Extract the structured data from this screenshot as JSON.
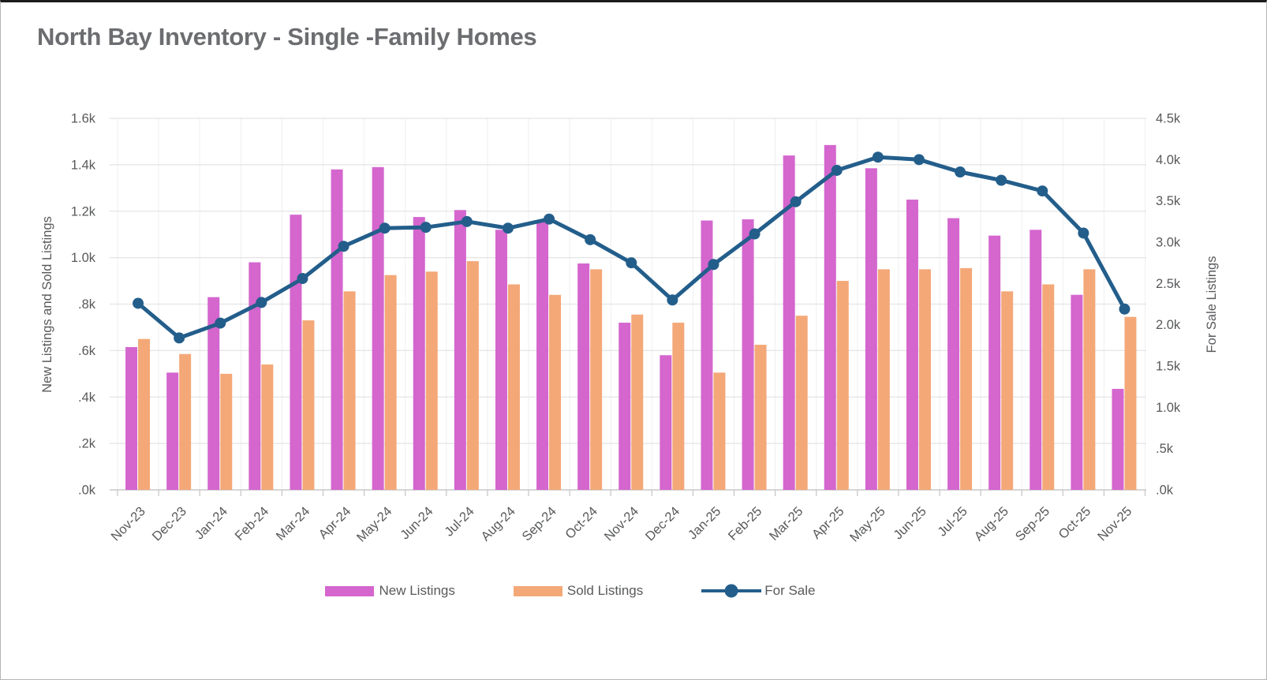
{
  "page": {
    "title": "North Bay Inventory  - Single -Family Homes"
  },
  "legend": {
    "new_listings": "New Listings",
    "sold_listings": "Sold Listings",
    "for_sale": "For Sale"
  },
  "colors": {
    "title_text": "#6c6d70",
    "axis_text": "#58595b",
    "gridline": "#e4e4e4",
    "vertical_gridline": "#efefef",
    "axis_line": "#c9c9c9",
    "background": "#ffffff",
    "new_listings": "#d466ce",
    "sold_listings": "#f4a878",
    "for_sale": "#235e8b"
  },
  "chart_data": {
    "type": "bar",
    "subtype": "grouped bars with overlay line, dual y-axes",
    "title": "North Bay Inventory  - Single -Family Homes",
    "grid": true,
    "legend_position": "bottom",
    "categories": [
      "Nov-23",
      "Dec-23",
      "Jan-24",
      "Feb-24",
      "Mar-24",
      "Apr-24",
      "May-24",
      "Jun-24",
      "Jul-24",
      "Aug-24",
      "Sep-24",
      "Oct-24",
      "Nov-24",
      "Dec-24",
      "Jan-25",
      "Feb-25",
      "Mar-25",
      "Apr-25",
      "May-25",
      "Jun-25",
      "Jul-25",
      "Aug-25",
      "Sep-25",
      "Oct-25",
      "Nov-25"
    ],
    "series": [
      {
        "name": "New Listings",
        "type": "bar",
        "axis": "left",
        "color": "#d466ce",
        "values": [
          615,
          505,
          830,
          980,
          1185,
          1380,
          1390,
          1175,
          1205,
          1120,
          1160,
          975,
          720,
          580,
          1160,
          1165,
          1440,
          1485,
          1385,
          1250,
          1170,
          1095,
          1120,
          840,
          435
        ]
      },
      {
        "name": "Sold Listings",
        "type": "bar",
        "axis": "left",
        "color": "#f4a878",
        "values": [
          650,
          585,
          500,
          540,
          730,
          855,
          925,
          940,
          985,
          885,
          840,
          950,
          755,
          720,
          505,
          625,
          750,
          900,
          950,
          950,
          955,
          855,
          885,
          950,
          745
        ]
      },
      {
        "name": "For Sale",
        "type": "line",
        "axis": "right",
        "color": "#235e8b",
        "values": [
          2260,
          1840,
          2020,
          2270,
          2560,
          2950,
          3170,
          3180,
          3250,
          3170,
          3280,
          3030,
          2750,
          2300,
          2730,
          3100,
          3490,
          3870,
          4030,
          4000,
          3850,
          3750,
          3620,
          3110,
          2190
        ]
      }
    ],
    "left_axis": {
      "title": "New Listings and Sold Listings",
      "range": [
        0,
        1600
      ],
      "tick_values": [
        1600,
        1400,
        1200,
        1000,
        800,
        600,
        400,
        200,
        0
      ],
      "tick_labels": [
        "1.6k",
        "1.4k",
        "1.2k",
        "1.0k",
        ".8k",
        ".6k",
        ".4k",
        ".2k",
        ".0k"
      ]
    },
    "right_axis": {
      "title": "For Sale Listings",
      "range": [
        0,
        4500
      ],
      "tick_values": [
        4500,
        4000,
        3500,
        3000,
        2500,
        2000,
        1500,
        1000,
        500,
        0
      ],
      "tick_labels": [
        "4.5k",
        "4.0k",
        "3.5k",
        "3.0k",
        "2.5k",
        "2.0k",
        "1.5k",
        "1.0k",
        ".5k",
        ".0k"
      ]
    }
  }
}
